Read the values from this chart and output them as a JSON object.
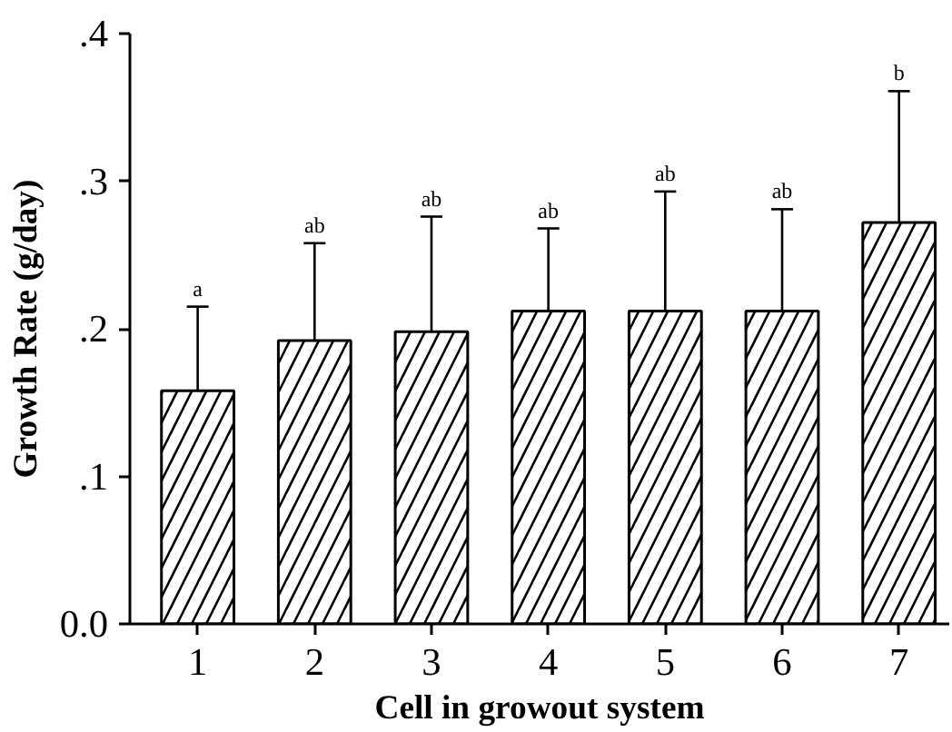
{
  "chart_data": {
    "type": "bar",
    "xlabel": "Cell in growout system",
    "ylabel": "Growth Rate (g/day)",
    "categories": [
      "1",
      "2",
      "3",
      "4",
      "5",
      "6",
      "7"
    ],
    "values": [
      0.158,
      0.192,
      0.198,
      0.212,
      0.212,
      0.212,
      0.272
    ],
    "errors": [
      [
        0.158,
        0.215
      ],
      [
        0.192,
        0.258
      ],
      [
        0.198,
        0.276
      ],
      [
        0.212,
        0.268
      ],
      [
        0.212,
        0.293
      ],
      [
        0.212,
        0.281
      ],
      [
        0.272,
        0.361
      ]
    ],
    "color": "#ffffff",
    "ylim": [
      0,
      0.4
    ],
    "yticks": [
      {
        "value": 0,
        "label": "0.0"
      },
      {
        "value": 0.1,
        "label": ".1"
      },
      {
        "value": 0.2,
        "label": ".2"
      },
      {
        "value": 0.3,
        "label": ".3"
      },
      {
        "value": 0.4,
        "label": ".4"
      }
    ],
    "annotations": [
      {
        "text": "a",
        "x": "1",
        "y": 0.215
      },
      {
        "text": "ab",
        "x": "2",
        "y": 0.258
      },
      {
        "text": "ab",
        "x": "3",
        "y": 0.276
      },
      {
        "text": "ab",
        "x": "4",
        "y": 0.268
      },
      {
        "text": "ab",
        "x": "5",
        "y": 0.293
      },
      {
        "text": "ab",
        "x": "6",
        "y": 0.281
      },
      {
        "text": "b",
        "x": "7",
        "y": 0.361
      }
    ],
    "grid": false
  }
}
